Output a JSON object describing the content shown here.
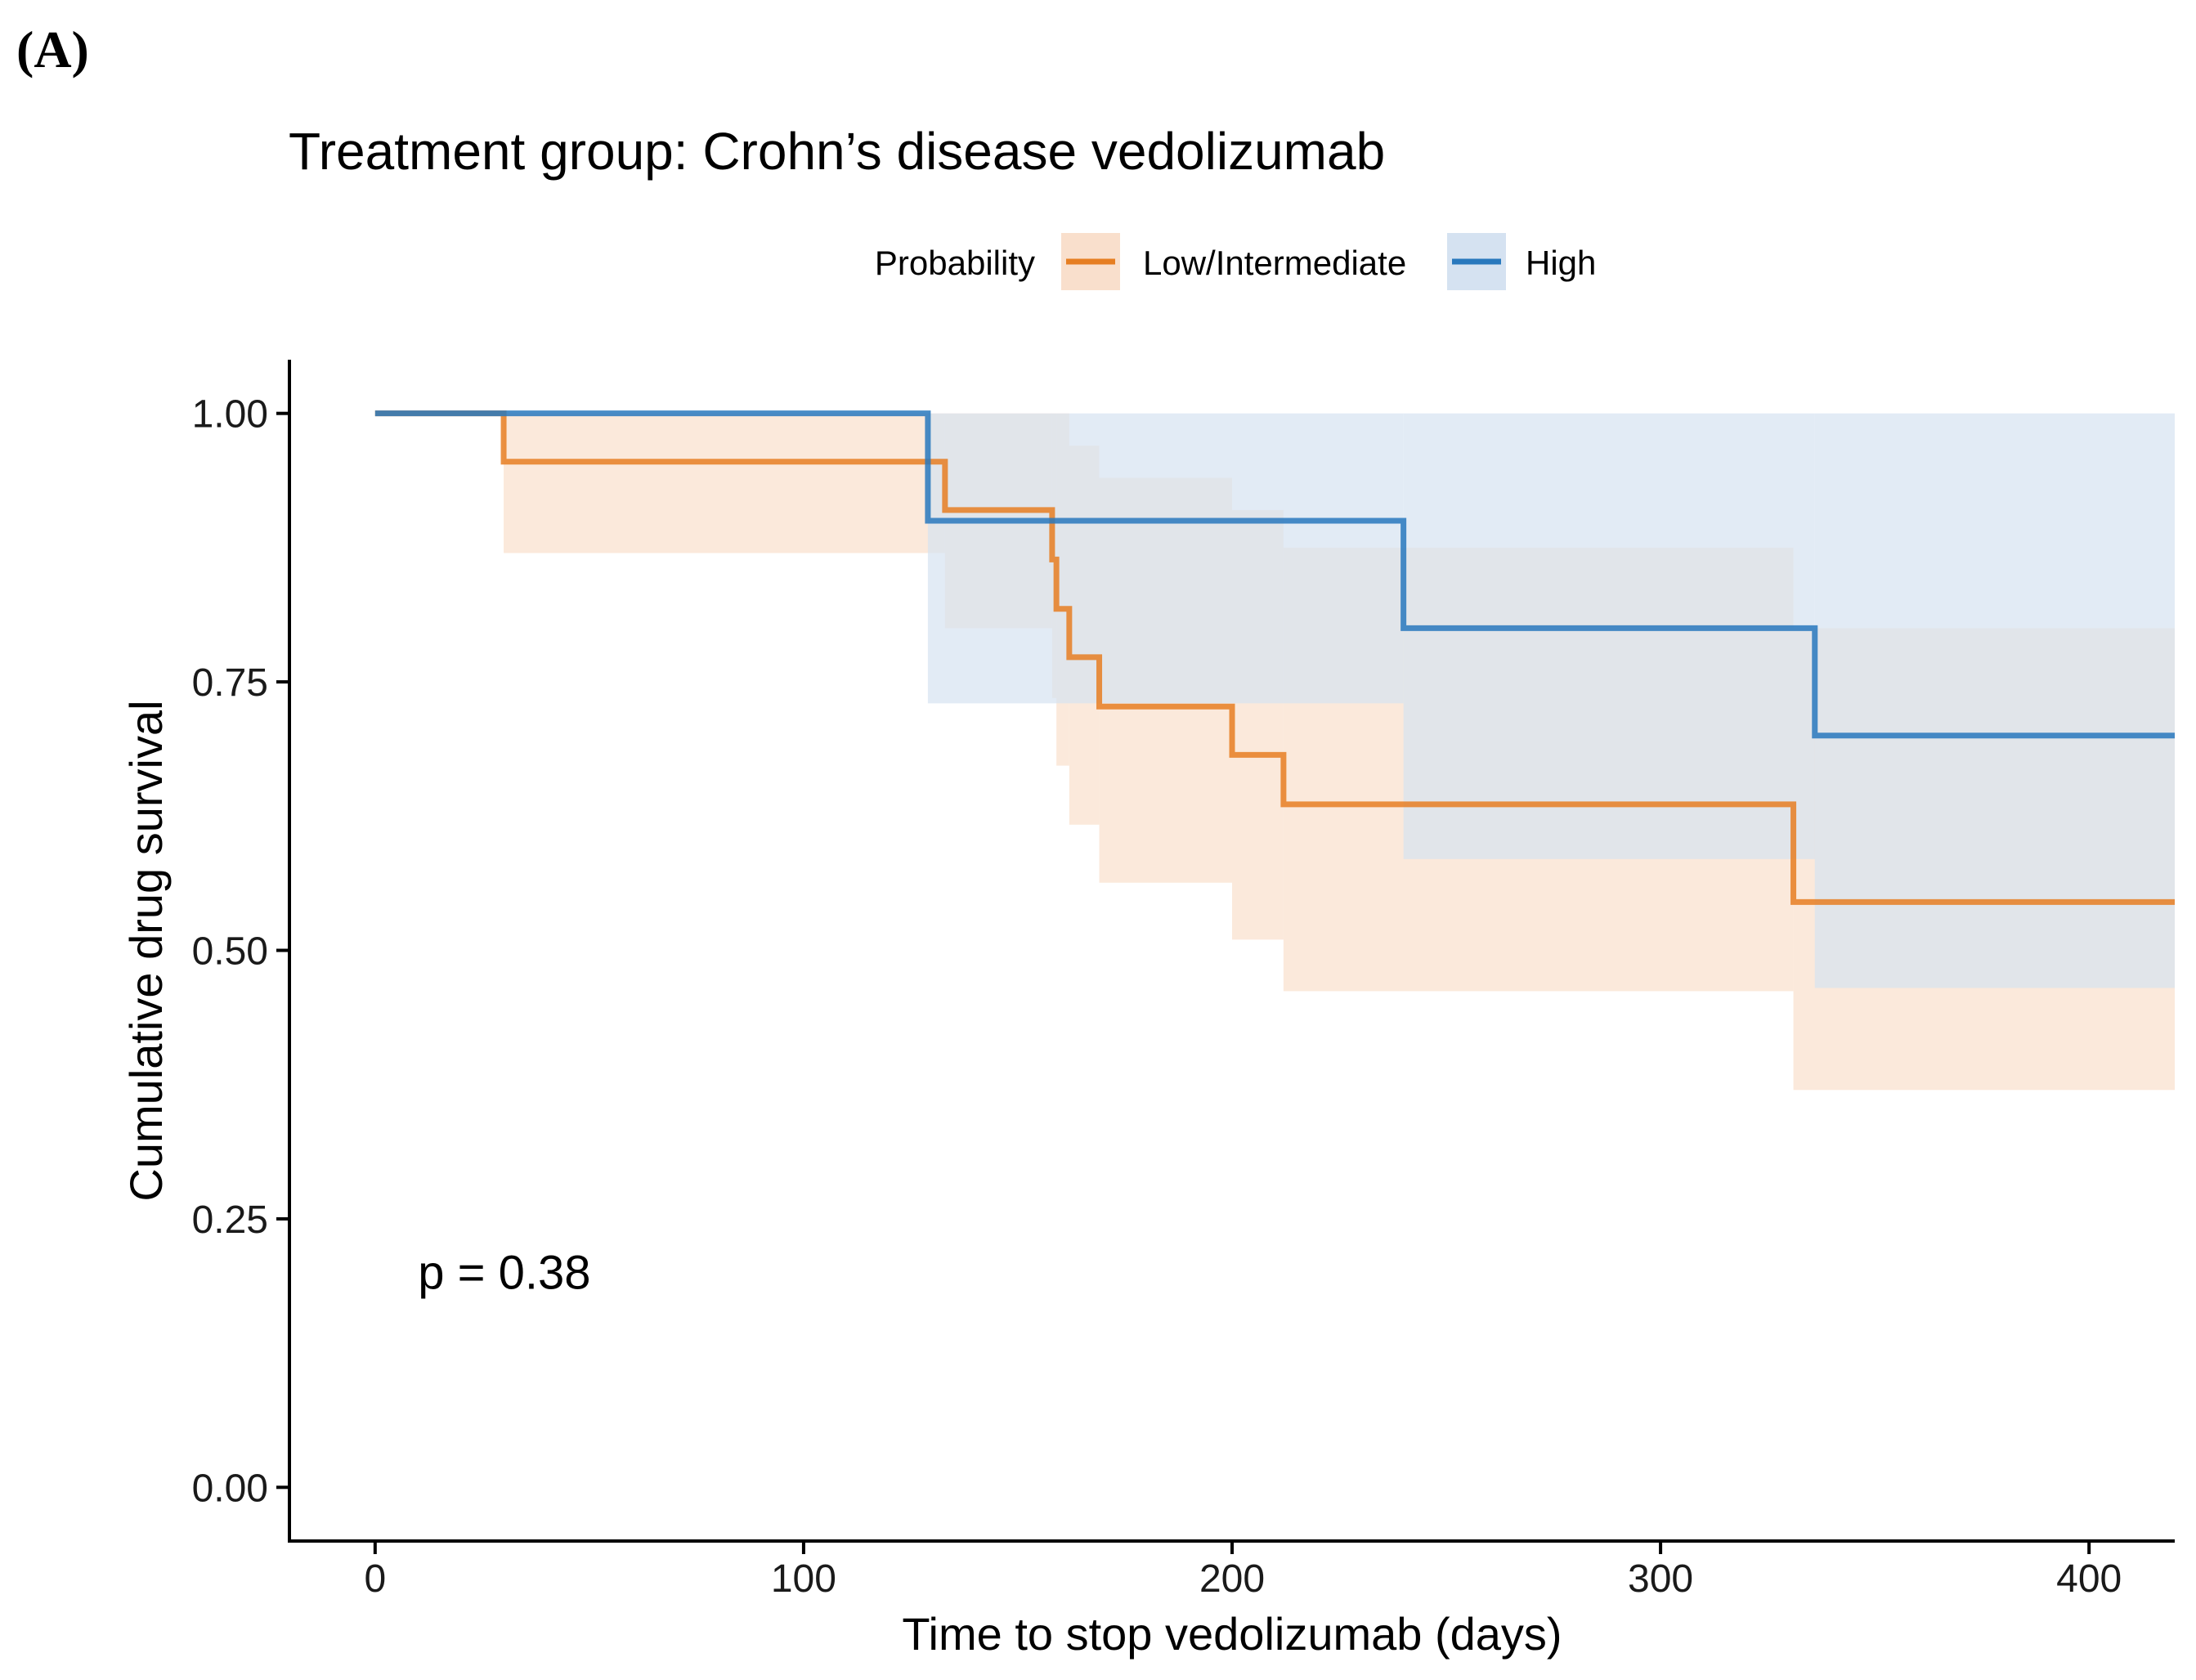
{
  "panel_label": "(A)",
  "chart_data": {
    "type": "line",
    "subtype": "kaplan-meier-step",
    "title": "Treatment group: Crohn’s disease vedolizumab",
    "xlabel": "Time to stop vedolizumab (days)",
    "ylabel": "Cumulative drug survival",
    "xlim": [
      -20,
      420
    ],
    "ylim": [
      -0.05,
      1.05
    ],
    "x_ticks": [
      0,
      100,
      200,
      300,
      400
    ],
    "x_tick_labels": [
      "0",
      "100",
      "200",
      "300",
      "400"
    ],
    "y_ticks": [
      0,
      0.25,
      0.5,
      0.75,
      1.0
    ],
    "y_tick_labels": [
      "0.00",
      "0.25",
      "0.50",
      "0.75",
      "1.00"
    ],
    "grid": false,
    "legend": {
      "title": "Probability",
      "position": "top-center"
    },
    "annotation": "p = 0.38",
    "annotation_pos": {
      "x": 10,
      "y": 0.2
    },
    "series": [
      {
        "name": "Low/Intermediate",
        "color": "#E67E22",
        "band_color": "#F9DFCC",
        "steps": [
          {
            "x": 0,
            "y": 1.0,
            "lo": 1.0,
            "hi": 1.0
          },
          {
            "x": 30,
            "y": 0.955,
            "lo": 0.87,
            "hi": 1.0
          },
          {
            "x": 133,
            "y": 0.91,
            "lo": 0.8,
            "hi": 1.0
          },
          {
            "x": 158,
            "y": 0.864,
            "lo": 0.735,
            "hi": 1.0
          },
          {
            "x": 159,
            "y": 0.818,
            "lo": 0.672,
            "hi": 1.0
          },
          {
            "x": 162,
            "y": 0.773,
            "lo": 0.617,
            "hi": 0.97
          },
          {
            "x": 169,
            "y": 0.727,
            "lo": 0.563,
            "hi": 0.94
          },
          {
            "x": 200,
            "y": 0.682,
            "lo": 0.51,
            "hi": 0.91
          },
          {
            "x": 212,
            "y": 0.636,
            "lo": 0.462,
            "hi": 0.875
          },
          {
            "x": 331,
            "y": 0.545,
            "lo": 0.37,
            "hi": 0.8
          }
        ],
        "x_end": 420
      },
      {
        "name": "High",
        "color": "#2878BD",
        "band_color": "#D5E2F1",
        "steps": [
          {
            "x": 0,
            "y": 1.0,
            "lo": 1.0,
            "hi": 1.0
          },
          {
            "x": 129,
            "y": 0.9,
            "lo": 0.73,
            "hi": 1.0
          },
          {
            "x": 240,
            "y": 0.8,
            "lo": 0.585,
            "hi": 1.0
          },
          {
            "x": 336,
            "y": 0.7,
            "lo": 0.465,
            "hi": 1.0
          }
        ],
        "x_end": 420
      }
    ]
  }
}
